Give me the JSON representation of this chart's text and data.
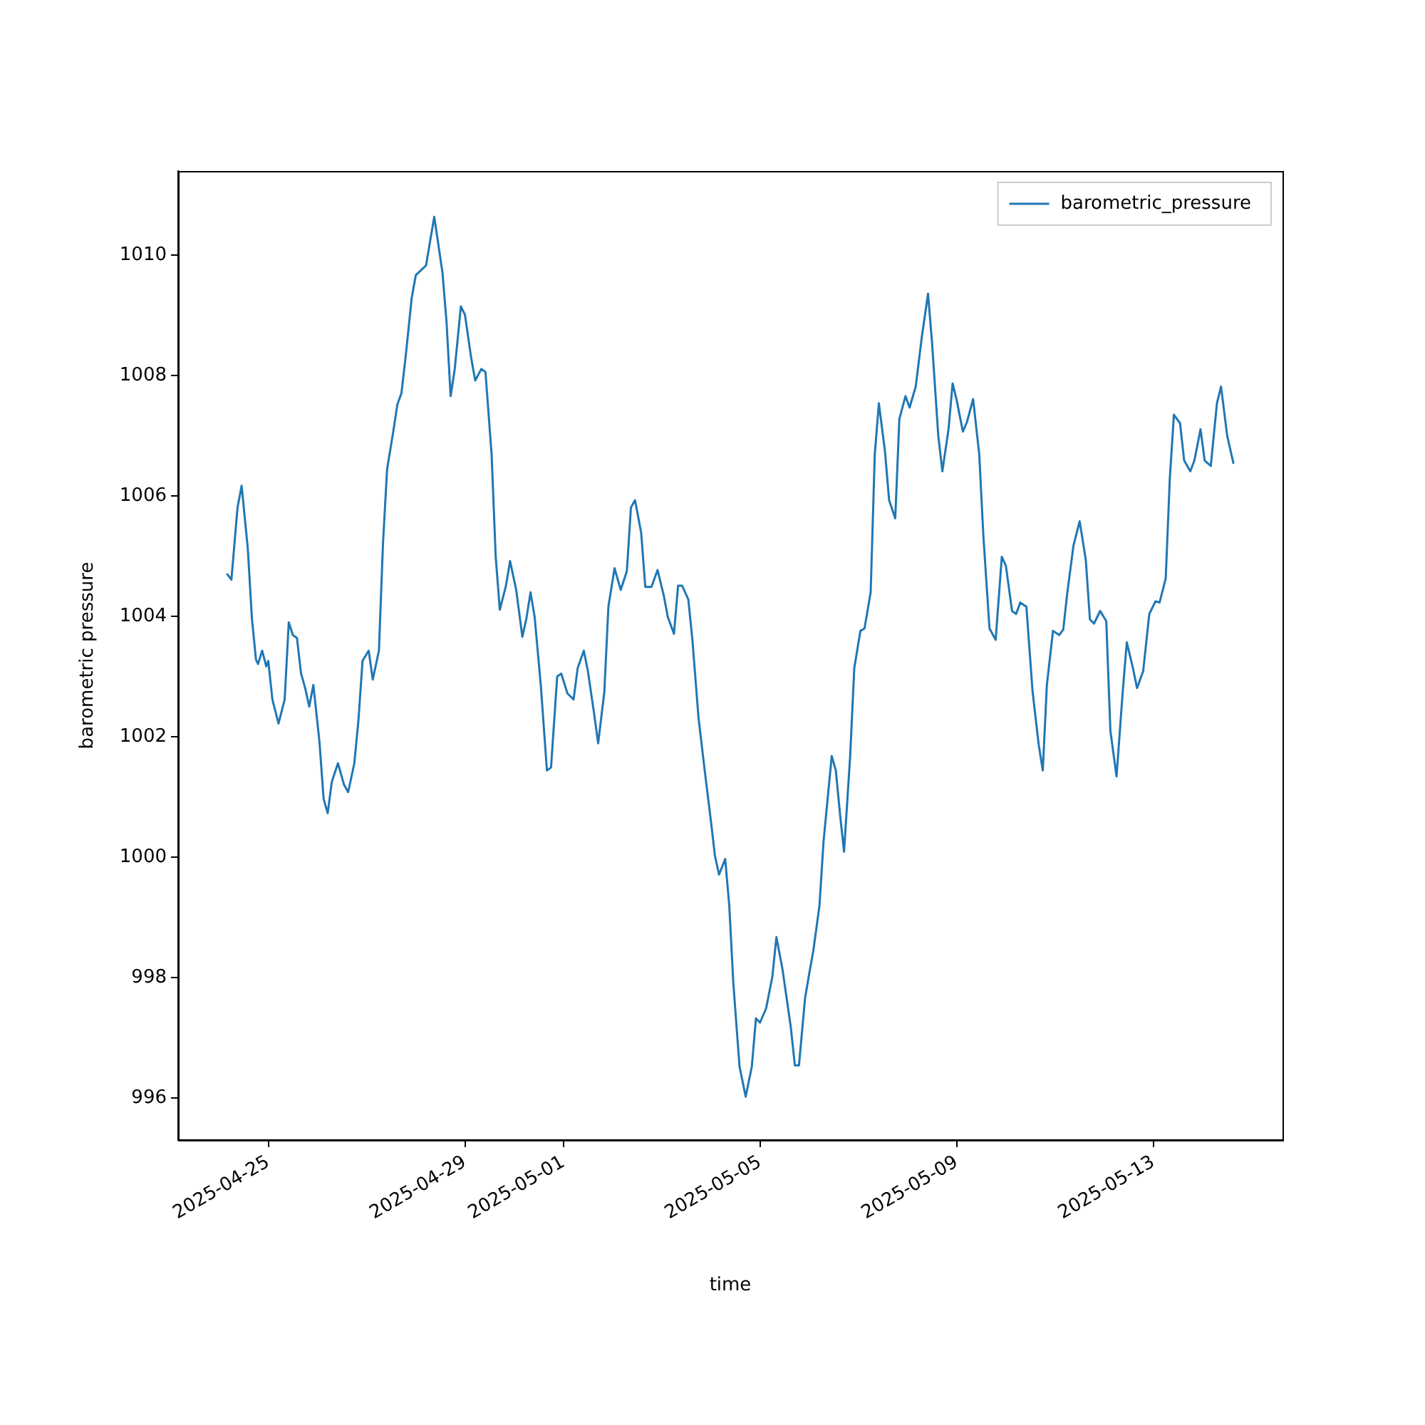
{
  "chart_data": {
    "type": "line",
    "xlabel": "time",
    "ylabel": "barometric pressure",
    "legend": "top right",
    "grid": false,
    "marker": "none",
    "line_style": "solid",
    "xlim": [
      "2025-04-23T04:00",
      "2025-05-15T15:00"
    ],
    "xticks": [
      "2025-04-25",
      "2025-04-29",
      "2025-05-01",
      "2025-05-05",
      "2025-05-09",
      "2025-05-13"
    ],
    "ylim": [
      995.3,
      1011.4
    ],
    "yticks": [
      996,
      998,
      1000,
      1002,
      1004,
      1006,
      1008,
      1010
    ],
    "x": [
      "2025-04-24T04:00",
      "2025-04-24T06:00",
      "2025-04-24T09:00",
      "2025-04-24T11:00",
      "2025-04-24T14:00",
      "2025-04-24T16:00",
      "2025-04-24T18:00",
      "2025-04-24T19:00",
      "2025-04-24T21:00",
      "2025-04-24T23:00",
      "2025-04-25T00:00",
      "2025-04-25T02:00",
      "2025-04-25T05:00",
      "2025-04-25T08:00",
      "2025-04-25T10:00",
      "2025-04-25T12:00",
      "2025-04-25T14:00",
      "2025-04-25T16:00",
      "2025-04-25T18:00",
      "2025-04-25T20:00",
      "2025-04-25T22:00",
      "2025-04-26T01:00",
      "2025-04-26T03:00",
      "2025-04-26T05:00",
      "2025-04-26T07:00",
      "2025-04-26T10:00",
      "2025-04-26T13:00",
      "2025-04-26T15:00",
      "2025-04-26T18:00",
      "2025-04-26T20:00",
      "2025-04-26T22:00",
      "2025-04-27T01:00",
      "2025-04-27T03:00",
      "2025-04-27T06:00",
      "2025-04-27T08:00",
      "2025-04-27T10:00",
      "2025-04-27T13:00",
      "2025-04-27T15:00",
      "2025-04-27T17:00",
      "2025-04-27T19:00",
      "2025-04-27T22:00",
      "2025-04-28T00:00",
      "2025-04-28T05:00",
      "2025-04-28T09:00",
      "2025-04-28T13:00",
      "2025-04-28T15:00",
      "2025-04-28T17:00",
      "2025-04-28T19:00",
      "2025-04-28T22:00",
      "2025-04-29T00:00",
      "2025-04-29T03:00",
      "2025-04-29T05:00",
      "2025-04-29T08:00",
      "2025-04-29T10:00",
      "2025-04-29T13:00",
      "2025-04-29T15:00",
      "2025-04-29T17:00",
      "2025-04-29T20:00",
      "2025-04-29T22:00",
      "2025-04-30T01:00",
      "2025-04-30T04:00",
      "2025-04-30T06:00",
      "2025-04-30T08:00",
      "2025-04-30T10:00",
      "2025-04-30T13:00",
      "2025-04-30T15:00",
      "2025-04-30T16:00",
      "2025-04-30T18:00",
      "2025-04-30T21:00",
      "2025-04-30T23:00",
      "2025-05-01T02:00",
      "2025-05-01T05:00",
      "2025-05-01T07:00",
      "2025-05-01T10:00",
      "2025-05-01T12:00",
      "2025-05-01T15:00",
      "2025-05-01T17:00",
      "2025-05-01T20:00",
      "2025-05-01T22:00",
      "2025-05-02T01:00",
      "2025-05-02T04:00",
      "2025-05-02T07:00",
      "2025-05-02T09:00",
      "2025-05-02T11:00",
      "2025-05-02T14:00",
      "2025-05-02T16:00",
      "2025-05-02T19:00",
      "2025-05-02T22:00",
      "2025-05-03T01:00",
      "2025-05-03T03:00",
      "2025-05-03T06:00",
      "2025-05-03T08:00",
      "2025-05-03T10:00",
      "2025-05-03T13:00",
      "2025-05-03T15:00",
      "2025-05-03T18:00",
      "2025-05-03T21:00",
      "2025-05-04T00:00",
      "2025-05-04T02:00",
      "2025-05-04T04:00",
      "2025-05-04T07:00",
      "2025-05-04T09:00",
      "2025-05-04T11:00",
      "2025-05-04T14:00",
      "2025-05-04T17:00",
      "2025-05-04T20:00",
      "2025-05-04T22:00",
      "2025-05-05T00:00",
      "2025-05-05T03:00",
      "2025-05-05T06:00",
      "2025-05-05T08:00",
      "2025-05-05T11:00",
      "2025-05-05T15:00",
      "2025-05-05T17:00",
      "2025-05-05T19:00",
      "2025-05-05T22:00",
      "2025-05-06T00:00",
      "2025-05-06T02:00",
      "2025-05-06T05:00",
      "2025-05-06T07:00",
      "2025-05-06T09:00",
      "2025-05-06T11:00",
      "2025-05-06T13:00",
      "2025-05-06T15:00",
      "2025-05-06T17:00",
      "2025-05-06T20:00",
      "2025-05-06T22:00",
      "2025-05-07T01:00",
      "2025-05-07T03:00",
      "2025-05-07T06:00",
      "2025-05-07T08:00",
      "2025-05-07T10:00",
      "2025-05-07T13:00",
      "2025-05-07T15:00",
      "2025-05-07T18:00",
      "2025-05-07T20:00",
      "2025-05-07T23:00",
      "2025-05-08T01:00",
      "2025-05-08T04:00",
      "2025-05-08T07:00",
      "2025-05-08T10:00",
      "2025-05-08T12:00",
      "2025-05-08T15:00",
      "2025-05-08T17:00",
      "2025-05-08T20:00",
      "2025-05-08T22:00",
      "2025-05-09T00:00",
      "2025-05-09T03:00",
      "2025-05-09T05:00",
      "2025-05-09T08:00",
      "2025-05-09T11:00",
      "2025-05-09T13:00",
      "2025-05-09T16:00",
      "2025-05-09T19:00",
      "2025-05-09T22:00",
      "2025-05-10T00:00",
      "2025-05-10T03:00",
      "2025-05-10T05:00",
      "2025-05-10T07:00",
      "2025-05-10T10:00",
      "2025-05-10T13:00",
      "2025-05-10T16:00",
      "2025-05-10T18:00",
      "2025-05-10T20:00",
      "2025-05-10T23:00",
      "2025-05-11T02:00",
      "2025-05-11T04:00",
      "2025-05-11T06:00",
      "2025-05-11T09:00",
      "2025-05-11T12:00",
      "2025-05-11T15:00",
      "2025-05-11T17:00",
      "2025-05-11T19:00",
      "2025-05-11T22:00",
      "2025-05-12T01:00",
      "2025-05-12T03:00",
      "2025-05-12T06:00",
      "2025-05-12T09:00",
      "2025-05-12T11:00",
      "2025-05-12T14:00",
      "2025-05-12T16:00",
      "2025-05-12T19:00",
      "2025-05-12T22:00",
      "2025-05-13T01:00",
      "2025-05-13T03:00",
      "2025-05-13T06:00",
      "2025-05-13T08:00",
      "2025-05-13T10:00",
      "2025-05-13T13:00",
      "2025-05-13T15:00",
      "2025-05-13T18:00",
      "2025-05-13T20:00",
      "2025-05-13T23:00",
      "2025-05-14T01:00",
      "2025-05-14T04:00",
      "2025-05-14T07:00",
      "2025-05-14T09:00",
      "2025-05-14T12:00",
      "2025-05-14T15:00"
    ],
    "series": [
      {
        "name": "barometric_pressure",
        "color": "#1f77b4",
        "values": [
          1004.7,
          1004.61,
          1005.81,
          1006.17,
          1005.13,
          1003.97,
          1003.28,
          1003.21,
          1003.43,
          1003.17,
          1003.26,
          1002.62,
          1002.22,
          1002.62,
          1003.9,
          1003.69,
          1003.64,
          1003.05,
          1002.81,
          1002.5,
          1002.86,
          1001.91,
          1000.97,
          1000.73,
          1001.25,
          1001.56,
          1001.2,
          1001.08,
          1001.56,
          1002.27,
          1003.26,
          1003.43,
          1002.95,
          1003.43,
          1005.22,
          1006.45,
          1007.07,
          1007.52,
          1007.71,
          1008.3,
          1009.29,
          1009.67,
          1009.83,
          1010.64,
          1009.72,
          1008.89,
          1007.66,
          1008.11,
          1009.15,
          1009.01,
          1008.3,
          1007.92,
          1008.11,
          1008.06,
          1006.69,
          1004.99,
          1004.11,
          1004.51,
          1004.92,
          1004.44,
          1003.66,
          1003.97,
          1004.4,
          1003.99,
          1002.86,
          1001.91,
          1001.44,
          1001.49,
          1003.0,
          1003.05,
          1002.72,
          1002.62,
          1003.14,
          1003.43,
          1003.09,
          1002.39,
          1001.89,
          1002.74,
          1004.16,
          1004.8,
          1004.44,
          1004.75,
          1005.81,
          1005.93,
          1005.39,
          1004.49,
          1004.49,
          1004.77,
          1004.35,
          1003.99,
          1003.71,
          1004.51,
          1004.51,
          1004.28,
          1003.61,
          1002.31,
          1001.44,
          1000.61,
          1000.02,
          999.71,
          999.97,
          999.19,
          997.89,
          996.52,
          996.02,
          996.52,
          997.32,
          997.25,
          997.49,
          998.01,
          998.67,
          998.13,
          997.18,
          996.54,
          996.54,
          997.66,
          998.06,
          998.44,
          999.19,
          1000.26,
          1000.97,
          1001.68,
          1001.44,
          1000.73,
          1000.09,
          1001.68,
          1003.14,
          1003.76,
          1003.8,
          1004.4,
          1006.69,
          1007.54,
          1006.74,
          1005.93,
          1005.63,
          1007.28,
          1007.66,
          1007.47,
          1007.82,
          1008.65,
          1009.36,
          1008.53,
          1007.0,
          1006.41,
          1007.11,
          1007.87,
          1007.59,
          1007.07,
          1007.23,
          1007.61,
          1006.69,
          1005.34,
          1003.8,
          1003.61,
          1004.99,
          1004.84,
          1004.09,
          1004.04,
          1004.23,
          1004.16,
          1002.76,
          1001.87,
          1001.44,
          1002.86,
          1003.76,
          1003.69,
          1003.78,
          1004.4,
          1005.18,
          1005.58,
          1004.94,
          1003.95,
          1003.88,
          1004.09,
          1003.92,
          1002.1,
          1001.34,
          1002.74,
          1003.57,
          1003.14,
          1002.81,
          1003.09,
          1004.04,
          1004.25,
          1004.23,
          1004.63,
          1006.29,
          1007.35,
          1007.21,
          1006.59,
          1006.41,
          1006.59,
          1007.11,
          1006.59,
          1006.5,
          1007.54,
          1007.82,
          1007.0,
          1006.55
        ]
      }
    ]
  }
}
